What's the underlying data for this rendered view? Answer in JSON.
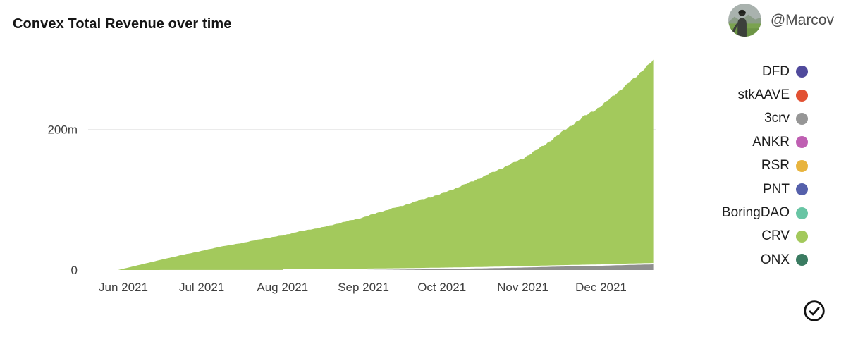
{
  "header": {
    "title": "Convex Total Revenue over time",
    "user_handle": "@Marcov"
  },
  "legend": {
    "position": "right",
    "items": [
      {
        "label": "DFD",
        "color": "#504a9c"
      },
      {
        "label": "stkAAVE",
        "color": "#e25133"
      },
      {
        "label": "3crv",
        "color": "#969696"
      },
      {
        "label": "ANKR",
        "color": "#bf5fb2"
      },
      {
        "label": "RSR",
        "color": "#e8b43e"
      },
      {
        "label": "PNT",
        "color": "#5560ab"
      },
      {
        "label": "BoringDAO",
        "color": "#68c5a4"
      },
      {
        "label": "CRV",
        "color": "#a3c95c"
      },
      {
        "label": "ONX",
        "color": "#3a7b61"
      }
    ]
  },
  "chart_data": {
    "type": "area",
    "stacked": true,
    "title": "Convex Total Revenue over time",
    "xlabel": "",
    "ylabel": "",
    "grid": "horizontal-only",
    "legend_position": "right",
    "x_axis": {
      "ticks": [
        {
          "label": "Jun 2021",
          "date": "2021-06-01"
        },
        {
          "label": "Jul 2021",
          "date": "2021-07-01"
        },
        {
          "label": "Aug 2021",
          "date": "2021-08-01"
        },
        {
          "label": "Sep 2021",
          "date": "2021-09-01"
        },
        {
          "label": "Oct 2021",
          "date": "2021-10-01"
        },
        {
          "label": "Nov 2021",
          "date": "2021-11-01"
        },
        {
          "label": "Dec 2021",
          "date": "2021-12-01"
        }
      ]
    },
    "y_axis": {
      "unit": "millions",
      "range": [
        0,
        300
      ],
      "ticks": [
        {
          "label": "0",
          "value": 0
        },
        {
          "label": "200m",
          "value": 200
        }
      ]
    },
    "series": [
      {
        "name": "DFD",
        "color": "#504a9c",
        "points": [
          [
            "2021-05-30",
            0
          ],
          [
            "2021-12-21",
            0
          ]
        ]
      },
      {
        "name": "stkAAVE",
        "color": "#e25133",
        "points": [
          [
            "2021-05-30",
            0
          ],
          [
            "2021-12-21",
            0
          ]
        ]
      },
      {
        "name": "3crv",
        "color": "#8f8f8f",
        "points": [
          [
            "2021-05-30",
            0
          ],
          [
            "2021-08-01",
            0.2
          ],
          [
            "2021-08-16",
            0.5
          ],
          [
            "2021-09-01",
            1
          ],
          [
            "2021-09-16",
            1.6
          ],
          [
            "2021-10-01",
            2.4
          ],
          [
            "2021-10-16",
            3.3
          ],
          [
            "2021-11-01",
            4.5
          ],
          [
            "2021-11-16",
            5.9
          ],
          [
            "2021-12-01",
            7
          ],
          [
            "2021-12-10",
            8
          ],
          [
            "2021-12-21",
            9
          ]
        ]
      },
      {
        "name": "ANKR",
        "color": "#bf5fb2",
        "points": [
          [
            "2021-05-30",
            0
          ],
          [
            "2021-12-21",
            0
          ]
        ]
      },
      {
        "name": "RSR",
        "color": "#e8b43e",
        "points": [
          [
            "2021-05-30",
            0
          ],
          [
            "2021-12-21",
            0
          ]
        ]
      },
      {
        "name": "PNT",
        "color": "#5560ab",
        "points": [
          [
            "2021-05-30",
            0
          ],
          [
            "2021-12-21",
            0
          ]
        ]
      },
      {
        "name": "BoringDAO",
        "color": "#68c5a4",
        "points": [
          [
            "2021-05-30",
            0
          ],
          [
            "2021-12-21",
            0
          ]
        ]
      },
      {
        "name": "CRV",
        "color": "#a3c95c",
        "points": [
          [
            "2021-05-30",
            0
          ],
          [
            "2021-06-08",
            8
          ],
          [
            "2021-06-16",
            15
          ],
          [
            "2021-06-23",
            21
          ],
          [
            "2021-07-01",
            27
          ],
          [
            "2021-07-08",
            33
          ],
          [
            "2021-07-16",
            38
          ],
          [
            "2021-07-24",
            44
          ],
          [
            "2021-08-01",
            49
          ],
          [
            "2021-08-08",
            55
          ],
          [
            "2021-08-16",
            60
          ],
          [
            "2021-08-24",
            67
          ],
          [
            "2021-09-01",
            74
          ],
          [
            "2021-09-08",
            82
          ],
          [
            "2021-09-16",
            90
          ],
          [
            "2021-09-23",
            98
          ],
          [
            "2021-10-01",
            106
          ],
          [
            "2021-10-08",
            116
          ],
          [
            "2021-10-16",
            128
          ],
          [
            "2021-10-24",
            141
          ],
          [
            "2021-11-01",
            154
          ],
          [
            "2021-11-07",
            167
          ],
          [
            "2021-11-13",
            182
          ],
          [
            "2021-11-19",
            198
          ],
          [
            "2021-11-25",
            213
          ],
          [
            "2021-12-01",
            226
          ],
          [
            "2021-12-04",
            235
          ],
          [
            "2021-12-07",
            244
          ],
          [
            "2021-12-10",
            253
          ],
          [
            "2021-12-13",
            262
          ],
          [
            "2021-12-15",
            268
          ],
          [
            "2021-12-17",
            276
          ],
          [
            "2021-12-19",
            283
          ],
          [
            "2021-12-21",
            289
          ]
        ]
      },
      {
        "name": "ONX",
        "color": "#3a7b61",
        "points": [
          [
            "2021-05-30",
            0
          ],
          [
            "2021-12-21",
            0
          ]
        ]
      }
    ]
  },
  "footer": {
    "verified_icon": "check-circle"
  }
}
